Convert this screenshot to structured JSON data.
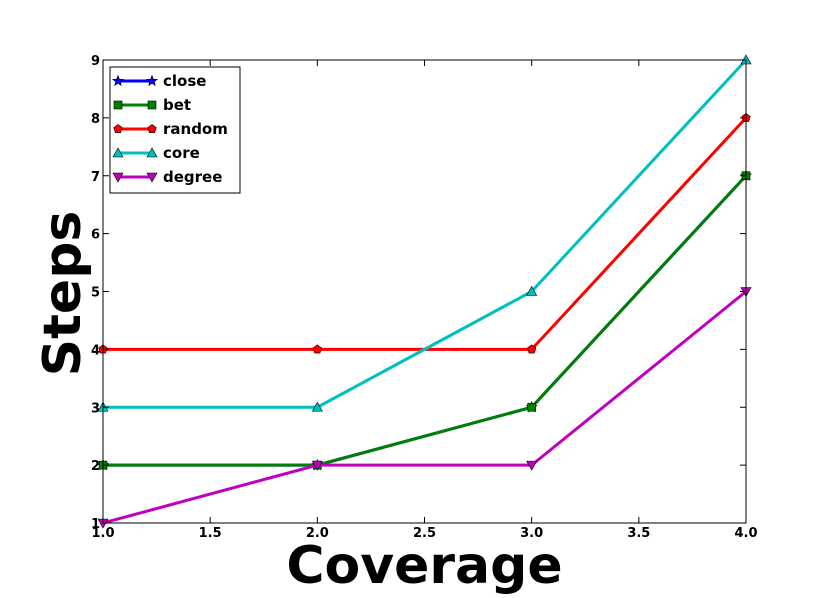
{
  "chart_data": {
    "type": "line",
    "xlabel": "Coverage",
    "ylabel": "Steps",
    "xlim": [
      1.0,
      4.0
    ],
    "ylim": [
      1,
      9
    ],
    "xticks": [
      "1.0",
      "1.5",
      "2.0",
      "2.5",
      "3.0",
      "3.5",
      "4.0"
    ],
    "yticks": [
      "1",
      "2",
      "3",
      "4",
      "5",
      "6",
      "7",
      "8",
      "9"
    ],
    "grid": false,
    "legend_position": "top-left",
    "x": [
      1,
      2,
      3,
      4
    ],
    "series": [
      {
        "name": "close",
        "color": "#0000ff",
        "marker": "star",
        "values": [
          2,
          2,
          3,
          7
        ]
      },
      {
        "name": "bet",
        "color": "#008000",
        "marker": "square",
        "values": [
          2,
          2,
          3,
          7
        ]
      },
      {
        "name": "random",
        "color": "#ff0000",
        "marker": "pentagon",
        "values": [
          4,
          4,
          4,
          8
        ]
      },
      {
        "name": "core",
        "color": "#00bfbf",
        "marker": "triangle-up",
        "values": [
          3,
          3,
          5,
          9
        ]
      },
      {
        "name": "degree",
        "color": "#bf00bf",
        "marker": "triangle-down",
        "values": [
          1,
          2,
          2,
          5
        ]
      }
    ]
  }
}
